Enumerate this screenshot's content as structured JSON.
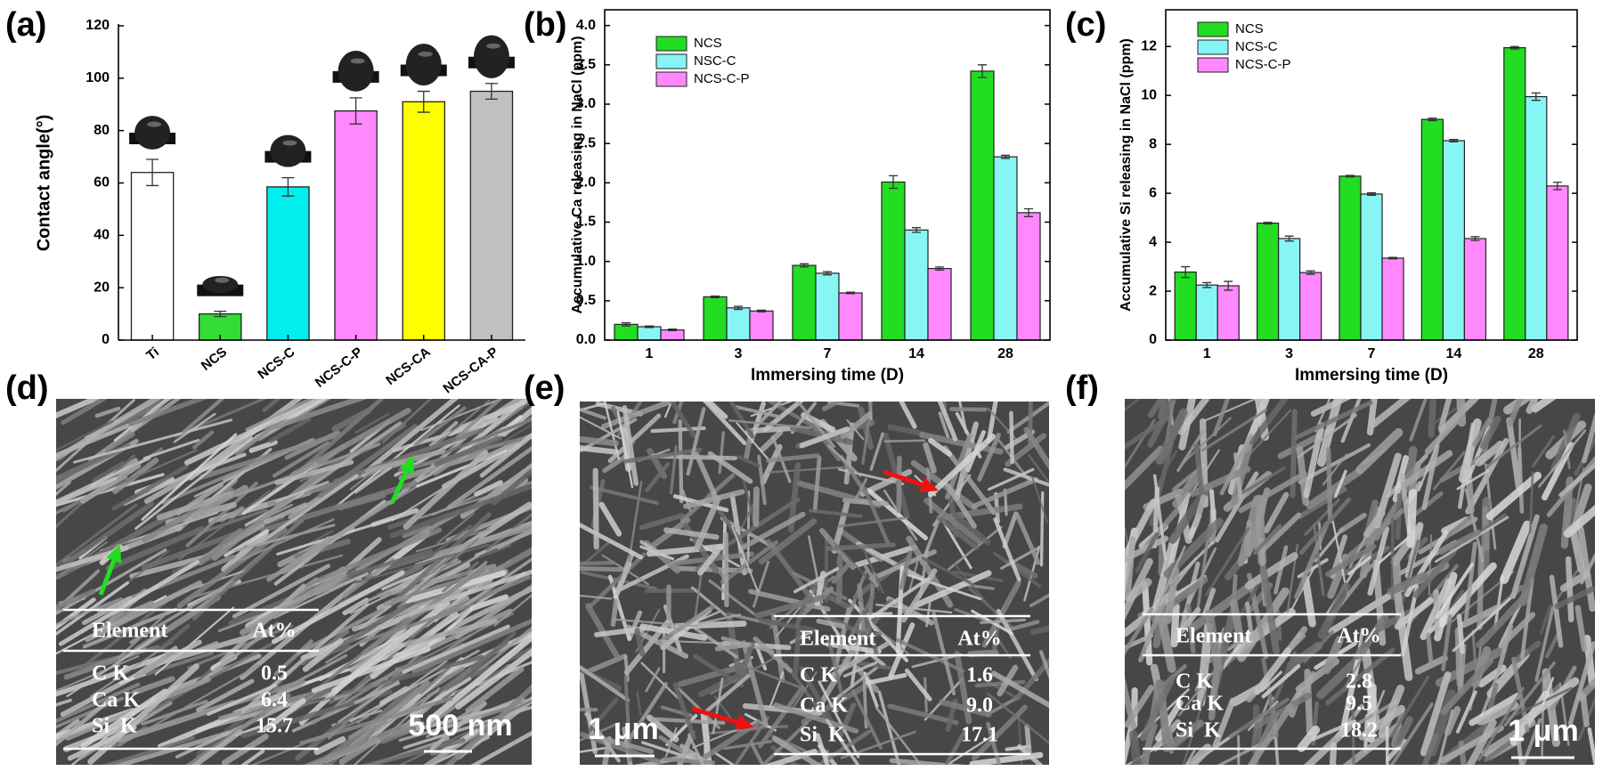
{
  "chart_data": [
    {
      "type": "bar",
      "panel_label": "(a)",
      "ylabel": "Contact angle(°)",
      "categories": [
        "Ti",
        "NCS",
        "NCS-C",
        "NCS-C-P",
        "NCS-CA",
        "NCS-CA-P"
      ],
      "values": [
        64,
        10,
        58.5,
        87.5,
        91,
        95
      ],
      "errors": [
        5,
        1,
        3.5,
        5,
        4,
        3
      ],
      "colors": [
        "#ffffff",
        "#33dd33",
        "#00eeee",
        "#ff88ff",
        "#ffff00",
        "#c0c0c0"
      ],
      "ylim": [
        0,
        120
      ],
      "yticks": [
        0,
        20,
        40,
        60,
        80,
        100,
        120
      ],
      "frame": "axes"
    },
    {
      "type": "grouped_bar",
      "panel_label": "(b)",
      "xlabel": "Immersing time (D)",
      "ylabel": "Accumulative Ca releasing in NaCl (ppm)",
      "categories": [
        "1",
        "3",
        "7",
        "14",
        "28"
      ],
      "series": [
        {
          "name": "NCS",
          "color": "#22dd22",
          "values": [
            0.2,
            0.55,
            0.95,
            2.01,
            3.42
          ],
          "errors": [
            0.02,
            0.01,
            0.02,
            0.08,
            0.08
          ]
        },
        {
          "name": "NSC-C",
          "color": "#88f5f5",
          "values": [
            0.17,
            0.41,
            0.85,
            1.4,
            2.33
          ],
          "errors": [
            0.01,
            0.02,
            0.02,
            0.03,
            0.02
          ]
        },
        {
          "name": "NCS-C-P",
          "color": "#ff88ff",
          "values": [
            0.13,
            0.37,
            0.6,
            0.91,
            1.62
          ],
          "errors": [
            0.01,
            0.01,
            0.01,
            0.02,
            0.05
          ]
        }
      ],
      "ylim": [
        0,
        4.2
      ],
      "yticks": [
        {
          "value": 0,
          "label": "0.0"
        },
        0.5,
        {
          "value": 1,
          "label": "1.0"
        },
        1.5,
        {
          "value": 2,
          "label": "2.0"
        },
        2.5,
        {
          "value": 3,
          "label": "3.0"
        },
        3.5,
        {
          "value": 4,
          "label": "4.0"
        }
      ],
      "legend": "upper left",
      "frame": "box"
    },
    {
      "type": "grouped_bar",
      "panel_label": "(c)",
      "xlabel": "Immersing time (D)",
      "ylabel": "Accumulative Si releasing in NaCl (ppm)",
      "categories": [
        "1",
        "3",
        "7",
        "14",
        "28"
      ],
      "series": [
        {
          "name": "NCS",
          "color": "#22dd22",
          "values": [
            2.78,
            4.78,
            6.7,
            9.02,
            11.95
          ],
          "errors": [
            0.22,
            0.03,
            0.03,
            0.05,
            0.05
          ]
        },
        {
          "name": "NCS-C",
          "color": "#88f5f5",
          "values": [
            2.25,
            4.15,
            5.97,
            8.15,
            9.95
          ],
          "errors": [
            0.1,
            0.1,
            0.05,
            0.05,
            0.15
          ]
        },
        {
          "name": "NCS-C-P",
          "color": "#ff88ff",
          "values": [
            2.22,
            2.76,
            3.35,
            4.15,
            6.3
          ],
          "errors": [
            0.18,
            0.07,
            0.03,
            0.08,
            0.15
          ]
        }
      ],
      "ylim": [
        0,
        13.5
      ],
      "yticks": [
        0,
        2,
        4,
        6,
        8,
        10,
        12
      ],
      "legend": "upper left",
      "frame": "box"
    }
  ],
  "sem_panels": [
    {
      "label": "(d)",
      "table": {
        "header": [
          "Element",
          "At%"
        ],
        "rows": [
          [
            "C K",
            "0.5"
          ],
          [
            "Ca K",
            "6.4"
          ],
          [
            "Si  K",
            "15.7"
          ]
        ]
      },
      "scale_bar": "500 nm"
    },
    {
      "label": "(e)",
      "table": {
        "header": [
          "Element",
          "At%"
        ],
        "rows": [
          [
            "C K",
            "1.6"
          ],
          [
            "Ca K",
            "9.0"
          ],
          [
            "Si  K",
            "17.1"
          ]
        ]
      },
      "scale_bar": "1 μm"
    },
    {
      "label": "(f)",
      "table": {
        "header": [
          "Element",
          "At%"
        ],
        "rows": [
          [
            "C K",
            "2.8"
          ],
          [
            "Ca K",
            "9.5"
          ],
          [
            "Si  K",
            "18.2"
          ]
        ]
      },
      "scale_bar": "1 μm"
    }
  ]
}
